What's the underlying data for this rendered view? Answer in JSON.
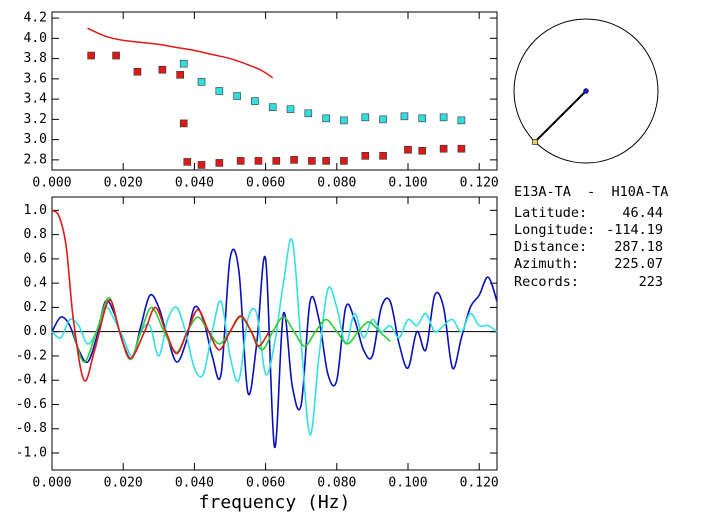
{
  "chart_data": [
    {
      "type": "scatter",
      "xlim": [
        0,
        0.125
      ],
      "ylim": [
        2.7,
        4.26
      ],
      "xticks": [
        {
          "value": 0,
          "label": "0.000"
        },
        {
          "value": 0.02,
          "label": "0.020"
        },
        {
          "value": 0.04,
          "label": "0.040"
        },
        {
          "value": 0.06,
          "label": "0.060"
        },
        {
          "value": 0.08,
          "label": "0.080"
        },
        {
          "value": 0.1,
          "label": "0.100"
        },
        {
          "value": 0.12,
          "label": "0.120"
        }
      ],
      "yticks": [
        2.8,
        3.2,
        3.4,
        3.6,
        3.8,
        {
          "value": 3,
          "label": "3.0"
        },
        {
          "value": 4,
          "label": "4.0"
        },
        4.2
      ],
      "series": [
        {
          "style": "line",
          "color": "#dd1a1a",
          "x": [
            0.01,
            0.013,
            0.016,
            0.02,
            0.025,
            0.03,
            0.035,
            0.04,
            0.045,
            0.05,
            0.055,
            0.059,
            0.062
          ],
          "values": [
            4.1,
            4.05,
            4.01,
            3.98,
            3.96,
            3.94,
            3.91,
            3.88,
            3.84,
            3.8,
            3.74,
            3.68,
            3.61
          ]
        },
        {
          "style": "square",
          "color": "#dd1a1a",
          "x": [
            0.011,
            0.018,
            0.024,
            0.031,
            0.036,
            0.037,
            0.038,
            0.042,
            0.047,
            0.053,
            0.058,
            0.063,
            0.068,
            0.073,
            0.077,
            0.082,
            0.088,
            0.093,
            0.1,
            0.104,
            0.11,
            0.115
          ],
          "values": [
            3.83,
            3.83,
            3.67,
            3.69,
            3.64,
            3.16,
            2.78,
            2.75,
            2.77,
            2.79,
            2.79,
            2.79,
            2.8,
            2.79,
            2.79,
            2.79,
            2.84,
            2.84,
            2.9,
            2.89,
            2.91,
            2.91
          ]
        },
        {
          "style": "square",
          "color": "#33dddd",
          "x": [
            0.037,
            0.042,
            0.047,
            0.052,
            0.057,
            0.062,
            0.067,
            0.072,
            0.077,
            0.082,
            0.088,
            0.093,
            0.099,
            0.104,
            0.11,
            0.115
          ],
          "values": [
            3.75,
            3.57,
            3.48,
            3.43,
            3.38,
            3.32,
            3.3,
            3.26,
            3.21,
            3.19,
            3.22,
            3.2,
            3.23,
            3.21,
            3.22,
            3.19
          ]
        }
      ]
    },
    {
      "type": "line",
      "xlabel": "frequency (Hz)",
      "zero_line": true,
      "xlim": [
        0,
        0.125
      ],
      "ylim": [
        -1.14,
        1.11
      ],
      "xticks": [
        {
          "value": 0,
          "label": "0.000"
        },
        {
          "value": 0.02,
          "label": "0.020"
        },
        {
          "value": 0.04,
          "label": "0.040"
        },
        {
          "value": 0.06,
          "label": "0.060"
        },
        {
          "value": 0.08,
          "label": "0.080"
        },
        {
          "value": 0.1,
          "label": "0.100"
        },
        {
          "value": 0.12,
          "label": "0.120"
        }
      ],
      "yticks": [
        {
          "value": -1,
          "label": "-1.0"
        },
        -0.8,
        -0.6,
        -0.4,
        -0.2,
        {
          "value": 0,
          "label": "0.0"
        },
        0.2,
        0.4,
        0.6,
        0.8,
        {
          "value": 1,
          "label": "1.0"
        }
      ],
      "series": [
        {
          "color": "#0a10b8",
          "x": [
            0,
            0.0025,
            0.005,
            0.0075,
            0.01,
            0.0125,
            0.015,
            0.0175,
            0.02,
            0.0225,
            0.025,
            0.0275,
            0.03,
            0.0325,
            0.035,
            0.0375,
            0.04,
            0.0425,
            0.045,
            0.0475,
            0.05,
            0.0525,
            0.055,
            0.0575,
            0.06,
            0.0625,
            0.065,
            0.0675,
            0.07,
            0.0725,
            0.075,
            0.0775,
            0.08,
            0.0825,
            0.085,
            0.0875,
            0.09,
            0.0925,
            0.095,
            0.0975,
            0.1,
            0.1025,
            0.105,
            0.1075,
            0.11,
            0.1125,
            0.115,
            0.1175,
            0.12,
            0.1225,
            0.125
          ],
          "values": [
            0,
            0.12,
            0.05,
            -0.15,
            -0.25,
            -0.05,
            0.25,
            0.15,
            -0.1,
            -0.22,
            0.05,
            0.3,
            0.2,
            -0.05,
            -0.25,
            -0.1,
            0.2,
            0.1,
            -0.2,
            -0.35,
            0.6,
            0.5,
            -0.5,
            -0.1,
            0.6,
            -0.95,
            0.15,
            -0.45,
            -0.6,
            0.25,
            0.1,
            -0.35,
            -0.4,
            0.2,
            0.1,
            -0.15,
            -0.2,
            0.2,
            0.25,
            -0.1,
            -0.3,
            0,
            -0.15,
            0.3,
            0.2,
            -0.3,
            -0.05,
            0.2,
            0.3,
            0.45,
            0.25
          ]
        },
        {
          "color": "#33e0e0",
          "x": [
            0,
            0.0025,
            0.005,
            0.0075,
            0.01,
            0.0125,
            0.015,
            0.0175,
            0.02,
            0.0225,
            0.025,
            0.0275,
            0.03,
            0.0325,
            0.035,
            0.0375,
            0.04,
            0.0425,
            0.045,
            0.0475,
            0.05,
            0.0525,
            0.055,
            0.0575,
            0.06,
            0.0625,
            0.065,
            0.0675,
            0.07,
            0.0725,
            0.075,
            0.0775,
            0.08,
            0.0825,
            0.085,
            0.0875,
            0.09,
            0.0925,
            0.095,
            0.0975,
            0.1,
            0.1025,
            0.105,
            0.1075,
            0.11,
            0.1125,
            0.115,
            0.1175,
            0.12,
            0.1225,
            0.125
          ],
          "values": [
            0,
            -0.05,
            0.1,
            0.05,
            -0.1,
            0,
            0.2,
            0.1,
            -0.05,
            -0.2,
            0,
            0.05,
            -0.2,
            0.1,
            0.2,
            0,
            -0.3,
            -0.35,
            0,
            0.25,
            -0.2,
            -0.4,
            0.1,
            0.15,
            -0.35,
            -0.1,
            0.4,
            0.75,
            -0.1,
            -0.85,
            -0.2,
            0.35,
            0.2,
            -0.1,
            0.15,
            -0.05,
            0.1,
            0,
            0.05,
            -0.05,
            0.1,
            0.05,
            0.15,
            0,
            0.05,
            0.1,
            0,
            0.15,
            0.05,
            0.05,
            0
          ]
        },
        {
          "color": "#33cc33",
          "x": [
            0.006,
            0.009,
            0.0125,
            0.016,
            0.019,
            0.022,
            0.025,
            0.028,
            0.0315,
            0.035,
            0.038,
            0.041,
            0.044,
            0.047,
            0.05,
            0.053,
            0.056,
            0.059,
            0.062,
            0.065,
            0.068,
            0.071,
            0.074,
            0.077,
            0.08,
            0.083,
            0.086,
            0.089,
            0.092,
            0.095
          ],
          "values": [
            0,
            -0.25,
            0,
            0.28,
            0,
            -0.23,
            0,
            0.2,
            0,
            -0.17,
            0,
            0.12,
            0,
            -0.1,
            0,
            0.12,
            0,
            -0.15,
            0,
            0.12,
            0,
            -0.12,
            0,
            0.1,
            0,
            -0.1,
            0,
            0.08,
            0,
            -0.08
          ]
        },
        {
          "color": "#dd1a1a",
          "x": [
            0,
            0.002,
            0.004,
            0.006,
            0.009,
            0.012,
            0.016,
            0.019,
            0.022,
            0.026,
            0.029,
            0.032,
            0.035,
            0.038,
            0.041,
            0.044,
            0.047,
            0.05,
            0.053,
            0.056,
            0.058,
            0.061
          ],
          "values": [
            1.0,
            0.95,
            0.7,
            0.1,
            -0.4,
            -0.15,
            0.26,
            0,
            -0.22,
            0,
            0.2,
            0,
            -0.18,
            0,
            0.18,
            0,
            -0.15,
            0,
            0.13,
            0,
            -0.12,
            0
          ]
        }
      ]
    }
  ],
  "info": {
    "title": "E13A-TA  -  H10A-TA",
    "rows": [
      {
        "label": "Latitude:",
        "value": "46.44"
      },
      {
        "label": "Longitude:",
        "value": "-114.19"
      },
      {
        "label": "Distance:",
        "value": "287.18"
      },
      {
        "label": "Azimuth:",
        "value": "225.07"
      },
      {
        "label": "Records:",
        "value": "223"
      }
    ]
  }
}
